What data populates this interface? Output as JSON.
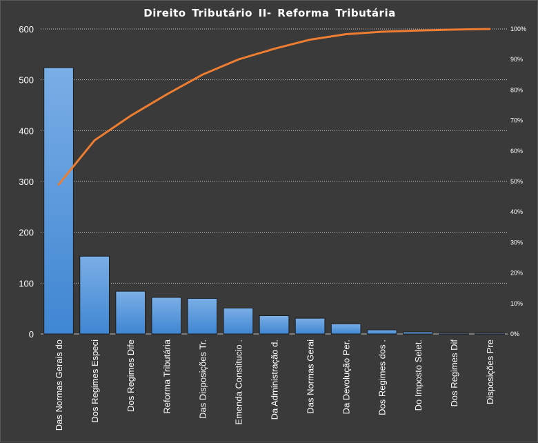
{
  "chart_data": {
    "type": "bar",
    "title": "Direito  Tributário  II- Reforma Tributária",
    "categories": [
      "Das Normas Gerais do",
      "Dos Regimes Especi",
      "Dos Regimes Dife",
      "Reforma Tributária",
      "Das Disposições Tr.",
      "Emenda Constitucio .",
      "Da Administração d.",
      "Das Normas Gerai",
      "Da Devolução Per.",
      "Dos Regimes dos  .",
      "Do Imposto Selet.",
      "Dos Regimes Dif",
      "Disposições Pre"
    ],
    "series": [
      {
        "type": "bar",
        "values": [
          524,
          153,
          84,
          72,
          70,
          51,
          36,
          31,
          20,
          8,
          4,
          2,
          2
        ]
      },
      {
        "type": "line",
        "axis": "secondary",
        "values": [
          49,
          63.5,
          71.5,
          78.5,
          85,
          90,
          93.5,
          96.5,
          98.3,
          99.1,
          99.5,
          99.8,
          100
        ]
      }
    ],
    "ylim": [
      0,
      600
    ],
    "yticks": [
      "0",
      "100",
      "200",
      "300",
      "400",
      "500",
      "600"
    ],
    "y2lim": [
      0,
      100
    ],
    "y2ticks": [
      "0%",
      "10%",
      "20%",
      "30%",
      "40%",
      "50%",
      "60%",
      "70%",
      "80%",
      "90%",
      "100%"
    ],
    "grid": true,
    "colors": {
      "bar": "#4a8fd6",
      "bar_top": "#7aaee6",
      "line": "#ed7d31",
      "background": "#3a3a3a",
      "grid": "#d0d0d0"
    }
  }
}
